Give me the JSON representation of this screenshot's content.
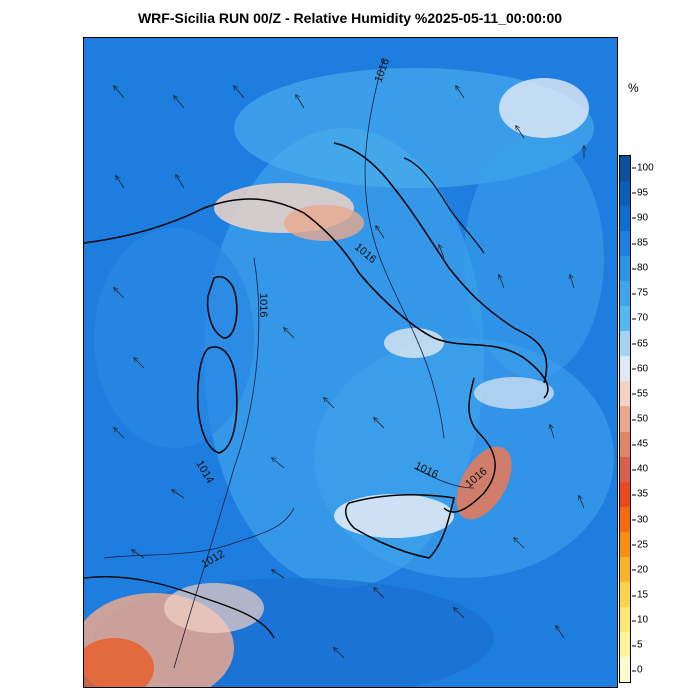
{
  "title": "WRF-Sicilia RUN 00/Z - Relative Humidity %2025-05-11_00:00:00",
  "unit_label": "%",
  "colorbar": {
    "ticks": [
      "100",
      "95",
      "90",
      "85",
      "80",
      "75",
      "70",
      "65",
      "60",
      "55",
      "50",
      "45",
      "40",
      "35",
      "30",
      "25",
      "20",
      "15",
      "10",
      "5",
      "0"
    ],
    "colors_top_to_bottom": [
      "#08519c",
      "#0b5fb8",
      "#0f6fd0",
      "#1c80e0",
      "#2b93e8",
      "#3ea6ee",
      "#55b8f2",
      "#a6d2f5",
      "#dfe9f3",
      "#f4d2c6",
      "#eaa88f",
      "#e08466",
      "#d9604a",
      "#e84a1e",
      "#f36a10",
      "#f88f12",
      "#fbb428",
      "#fbd34b",
      "#fce86f",
      "#fdf59a",
      "#fffbd0"
    ]
  },
  "contour_labels": [
    "1016",
    "1016",
    "1016",
    "1016",
    "1016",
    "1012",
    "1014"
  ]
}
